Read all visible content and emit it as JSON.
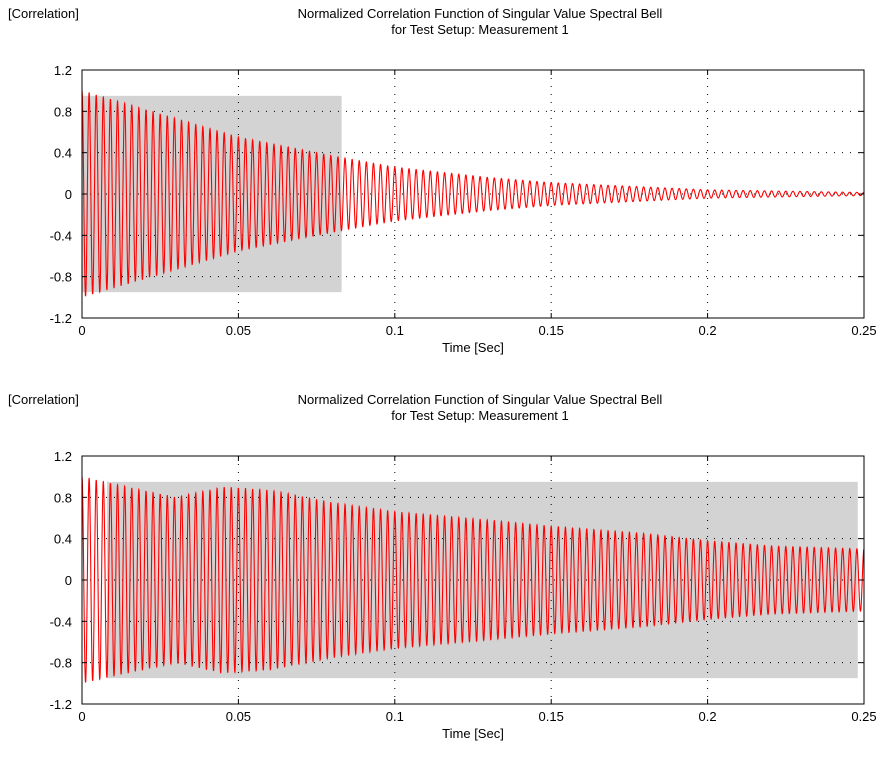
{
  "chart_data": [
    {
      "type": "line",
      "title": "Normalized Correlation Function of Singular Value Spectral Bell",
      "subtitle": "for Test Setup: Measurement 1",
      "ylabel": "[Correlation]",
      "xlabel": "Time [Sec]",
      "xlim": [
        0,
        0.25
      ],
      "ylim": [
        -1.2,
        1.2
      ],
      "xticks": [
        "0",
        "0.05",
        "0.1",
        "0.15",
        "0.2",
        "0.25"
      ],
      "yticks": [
        "1.2",
        "0.8",
        "0.4",
        "0",
        "-0.4",
        "-0.8",
        "-1.2"
      ],
      "grid": "dotted",
      "line_color": "#ff0000",
      "shade_color": "#d3d3d3",
      "highlight_window": {
        "x": [
          0.0,
          0.083
        ],
        "y": [
          -0.95,
          0.95
        ]
      },
      "series": [
        {
          "frequency_hz": 440,
          "envelope": {
            "t": [
              0,
              0.02,
              0.05,
              0.08,
              0.1,
              0.13,
              0.15,
              0.2,
              0.25
            ],
            "amplitude": [
              1.0,
              0.82,
              0.55,
              0.37,
              0.26,
              0.16,
              0.11,
              0.04,
              0.015
            ]
          }
        }
      ]
    },
    {
      "type": "line",
      "title": "Normalized Correlation Function of Singular Value Spectral Bell",
      "subtitle": "for Test Setup: Measurement 1",
      "ylabel": "[Correlation]",
      "xlabel": "Time [Sec]",
      "xlim": [
        0,
        0.25
      ],
      "ylim": [
        -1.2,
        1.2
      ],
      "xticks": [
        "0",
        "0.05",
        "0.1",
        "0.15",
        "0.2",
        "0.25"
      ],
      "yticks": [
        "1.2",
        "0.8",
        "0.4",
        "0",
        "-0.4",
        "-0.8",
        "-1.2"
      ],
      "grid": "dotted",
      "line_color": "#ff0000",
      "shade_color": "#d3d3d3",
      "highlight_window": {
        "x": [
          0.008,
          0.248
        ],
        "y": [
          -0.95,
          0.95
        ]
      },
      "series": [
        {
          "frequency_hz": 440,
          "envelope": {
            "t": [
              0,
              0.01,
              0.03,
              0.045,
              0.06,
              0.08,
              0.1,
              0.13,
              0.15,
              0.18,
              0.2,
              0.22,
              0.25
            ],
            "amplitude": [
              1.0,
              0.93,
              0.8,
              0.9,
              0.87,
              0.75,
              0.66,
              0.58,
              0.52,
              0.45,
              0.38,
              0.33,
              0.3
            ]
          }
        }
      ]
    }
  ]
}
